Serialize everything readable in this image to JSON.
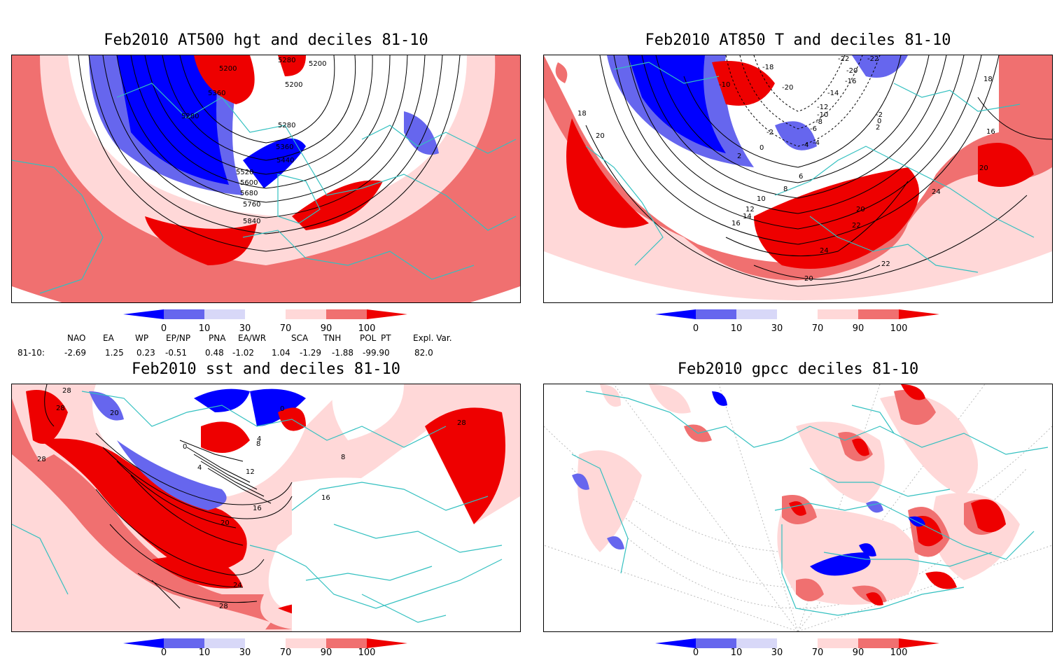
{
  "panels": [
    {
      "title": "Feb2010 AT500 hgt and deciles 81-10",
      "contour_labels": [
        "5200",
        "5280",
        "5200",
        "5200",
        "5360",
        "5280",
        "5280",
        "5360",
        "5440",
        "5520",
        "5600",
        "5680",
        "5760",
        "5840"
      ]
    },
    {
      "title": "Feb2010 AT850 T and deciles 81-10",
      "contour_labels": [
        "-18",
        "-22",
        "-22",
        "-20",
        "-10",
        "-16",
        "-20",
        "-14",
        "-12",
        "-10",
        "-8",
        "-6",
        "-4",
        "-2",
        "0",
        "2",
        "18",
        "20",
        "-2",
        "0",
        "2",
        "4",
        "6",
        "8",
        "10",
        "12",
        "14",
        "16",
        "18",
        "20",
        "20",
        "24",
        "22",
        "24",
        "22",
        "20",
        "16"
      ]
    },
    {
      "title": "Feb2010 sst and deciles 81-10",
      "contour_labels": [
        "28",
        "28",
        "28",
        "20",
        "0",
        "0",
        "4",
        "4",
        "8",
        "12",
        "16",
        "20",
        "24",
        "28",
        "16",
        "28",
        "8"
      ]
    },
    {
      "title": "Feb2010 gpcc deciles 81-10",
      "contour_labels": []
    }
  ],
  "colorbar": {
    "ticks": [
      "0",
      "10",
      "30",
      "70",
      "90",
      "100"
    ],
    "colors": [
      "#0000ff",
      "#6666ee",
      "#d8d8f8",
      "#ffffff",
      "#ffd8d8",
      "#f07070",
      "#ee0000"
    ]
  },
  "indices": {
    "headers": [
      "NAO",
      "EA",
      "WP",
      "EP/NP",
      "PNA",
      "EA/WR",
      "SCA",
      "TNH",
      "POL",
      "PT",
      "Expl. Var."
    ],
    "row_label": "81-10:",
    "values": [
      "-2.69",
      "1.25",
      "0.23",
      "-0.51",
      "0.48",
      "-1.02",
      "1.04",
      "-1.29",
      "-1.88",
      "-99.90",
      "82.0"
    ]
  },
  "colors": {
    "coast": "#33c0c0",
    "red": "#ee0000",
    "midred": "#f07070",
    "lightred": "#ffd8d8",
    "blue": "#0000ff",
    "midblue": "#6666ee",
    "lightblue": "#d8d8f8"
  }
}
